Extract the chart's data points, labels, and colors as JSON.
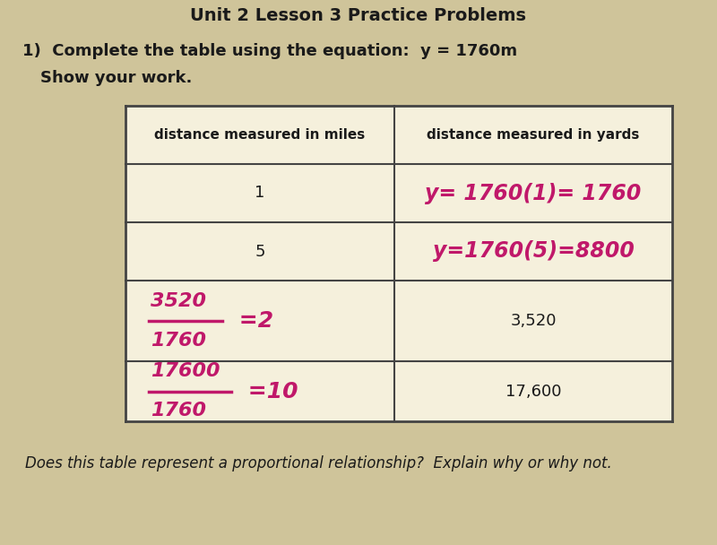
{
  "background_color": "#cfc49a",
  "title_top": "Unit 2 Lesson 3 Practice Problems",
  "question_text": "1)  Complete the table using the equation:  y = 1760m",
  "subtext": "Show your work.",
  "col1_header": "distance measured in miles",
  "col2_header": "distance measured in yards",
  "rows": [
    {
      "col1_text": "1",
      "col1_handwritten": false,
      "col2_text": "y= 1760(1)= 1760",
      "col2_handwritten": true
    },
    {
      "col1_text": "5",
      "col1_handwritten": false,
      "col2_text": "y=1760(5)=8800",
      "col2_handwritten": true
    },
    {
      "col1_line1": "3520",
      "col1_line2": "1760",
      "col1_suffix": "=2",
      "col1_handwritten": true,
      "col2_text": "3,520",
      "col2_handwritten": false
    },
    {
      "col1_line1": "17600",
      "col1_line2": "1760",
      "col1_suffix": "=10",
      "col1_handwritten": true,
      "col2_text": "17,600",
      "col2_handwritten": false
    }
  ],
  "footer_text": "Does this table represent a proportional relationship?  Explain why or why not.",
  "handwritten_color": "#c0186a",
  "table_border_color": "#444444",
  "text_color": "#1a1a1a",
  "title_color": "#1a1a1a"
}
